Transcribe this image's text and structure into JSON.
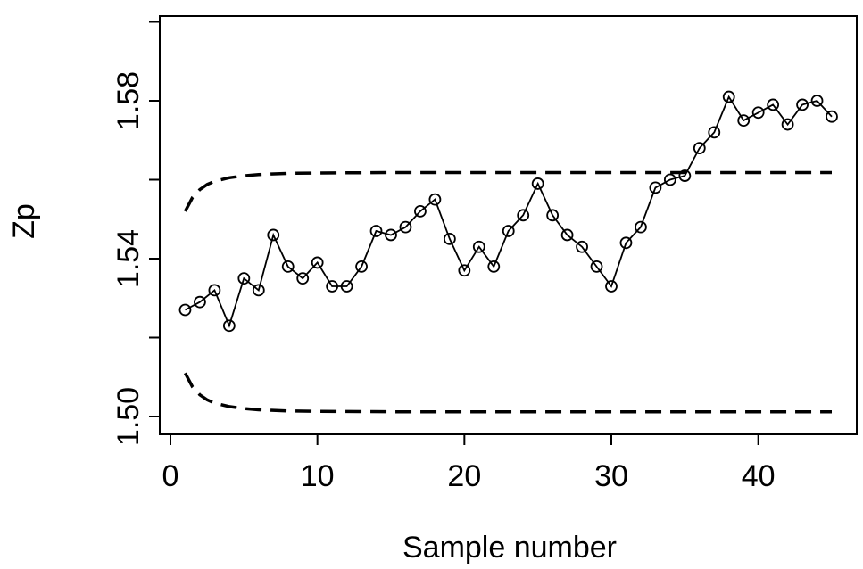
{
  "chart_data": {
    "type": "line",
    "title": "",
    "xlabel": "Sample number",
    "ylabel": "Zp",
    "xlim": [
      0,
      45
    ],
    "ylim": [
      1.495,
      1.602
    ],
    "x_ticks": [
      0,
      10,
      20,
      30,
      40
    ],
    "x_tick_labels": [
      "0",
      "10",
      "20",
      "30",
      "40"
    ],
    "y_ticks": [
      1.5,
      1.54,
      1.58
    ],
    "y_tick_labels": [
      "1.50",
      "1.54",
      "1.58"
    ],
    "grid": false,
    "series": [
      {
        "style": "solid-with-open-circles",
        "color": "#000000",
        "x": [
          1,
          2,
          3,
          4,
          5,
          6,
          7,
          8,
          9,
          10,
          11,
          12,
          13,
          14,
          15,
          16,
          17,
          18,
          19,
          20,
          21,
          22,
          23,
          24,
          25,
          26,
          27,
          28,
          29,
          30,
          31,
          32,
          33,
          34,
          35,
          36,
          37,
          38,
          39,
          40,
          41,
          42,
          43,
          44,
          45
        ],
        "y": [
          1.527,
          1.529,
          1.532,
          1.523,
          1.535,
          1.532,
          1.546,
          1.538,
          1.535,
          1.539,
          1.533,
          1.533,
          1.538,
          1.547,
          1.546,
          1.548,
          1.552,
          1.555,
          1.545,
          1.537,
          1.543,
          1.538,
          1.547,
          1.551,
          1.559,
          1.551,
          1.546,
          1.543,
          1.538,
          1.533,
          1.544,
          1.548,
          1.558,
          1.56,
          1.561,
          1.568,
          1.572,
          1.581,
          1.575,
          1.577,
          1.579,
          1.574,
          1.579,
          1.58,
          1.576
        ]
      },
      {
        "style": "dashed",
        "color": "#000000",
        "x": [
          1,
          1.5,
          2,
          2.5,
          3,
          4,
          5,
          6,
          8,
          10,
          15,
          20,
          25,
          30,
          35,
          40,
          45
        ],
        "y": [
          1.552,
          1.5555,
          1.5575,
          1.5588,
          1.5596,
          1.5605,
          1.561,
          1.5613,
          1.5616,
          1.5617,
          1.5618,
          1.5618,
          1.5618,
          1.5618,
          1.5618,
          1.5618,
          1.5618
        ]
      },
      {
        "style": "dashed",
        "color": "#000000",
        "x": [
          1,
          1.5,
          2,
          2.5,
          3,
          4,
          5,
          6,
          8,
          10,
          15,
          20,
          25,
          30,
          35,
          40,
          45
        ],
        "y": [
          1.511,
          1.5075,
          1.5055,
          1.5042,
          1.5034,
          1.5025,
          1.502,
          1.5017,
          1.5014,
          1.5013,
          1.5012,
          1.5012,
          1.5012,
          1.5012,
          1.5012,
          1.5012,
          1.5012
        ]
      }
    ]
  }
}
